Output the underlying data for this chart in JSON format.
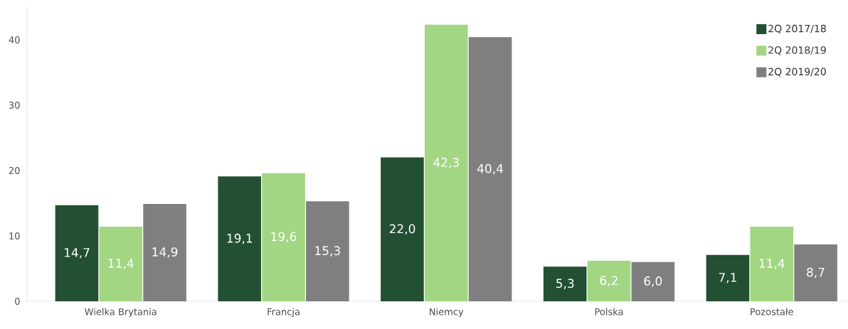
{
  "chart_data": {
    "type": "bar",
    "categories": [
      "Wielka Brytania",
      "Francja",
      "Niemcy",
      "Polska",
      "Pozostałe"
    ],
    "series": [
      {
        "name": "2Q 2017/18",
        "color": "#234f33",
        "values": [
          14.7,
          19.1,
          22.0,
          5.3,
          7.1
        ],
        "value_labels": [
          "14,7",
          "19,1",
          "22,0",
          "5,3",
          "7,1"
        ]
      },
      {
        "name": "2Q 2018/19",
        "color": "#a2d683",
        "values": [
          11.4,
          19.6,
          42.3,
          6.2,
          11.4
        ],
        "value_labels": [
          "11,4",
          "19,6",
          "42,3",
          "6,2",
          "11,4"
        ]
      },
      {
        "name": "2Q 2019/20",
        "color": "#7f7f7f",
        "values": [
          14.9,
          15.3,
          40.4,
          6.0,
          8.7
        ],
        "value_labels": [
          "14,9",
          "15,3",
          "40,4",
          "6,0",
          "8,7"
        ]
      }
    ],
    "ylim": [
      0,
      45
    ],
    "yticks": [
      0,
      10,
      20,
      30,
      40
    ],
    "grid": false,
    "legend": "top right"
  }
}
